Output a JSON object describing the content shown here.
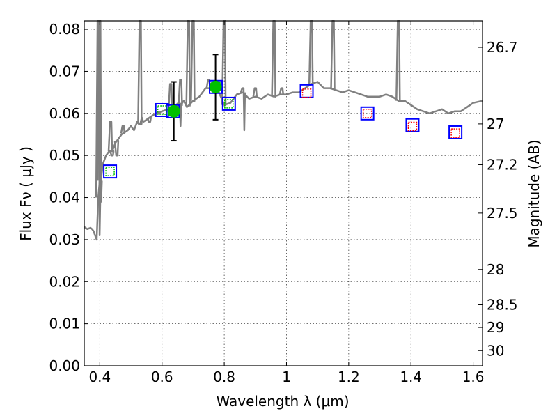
{
  "chart_data": {
    "type": "scatter",
    "xlabel": "Wavelength  λ (μm)",
    "ylabel": "Flux  Fν  ( μJy )",
    "ylabel2": "Magnitude (AB)",
    "xlim": [
      0.35,
      1.63
    ],
    "ylim": [
      0.0,
      0.082
    ],
    "grid": true,
    "x_ticks": [
      0.4,
      0.6,
      0.8,
      1.0,
      1.2,
      1.4,
      1.6
    ],
    "x_tick_labels": [
      "0.4",
      "0.6",
      "0.8",
      "1",
      "1.2",
      "1.4",
      "1.6"
    ],
    "y_ticks": [
      0.0,
      0.01,
      0.02,
      0.03,
      0.04,
      0.05,
      0.06,
      0.07,
      0.08
    ],
    "y_tick_labels": [
      "0.00",
      "0.01",
      "0.02",
      "0.03",
      "0.04",
      "0.05",
      "0.06",
      "0.07",
      "0.08"
    ],
    "right_axis_ticks": [
      {
        "label": "26.7",
        "flux": 0.0757
      },
      {
        "label": "27",
        "flux": 0.0575
      },
      {
        "label": "27.2",
        "flux": 0.0478
      },
      {
        "label": "27.5",
        "flux": 0.0363
      },
      {
        "label": "28",
        "flux": 0.0229
      },
      {
        "label": "28.5",
        "flux": 0.0145
      },
      {
        "label": "29",
        "flux": 0.0091
      },
      {
        "label": "30",
        "flux": 0.0036
      }
    ],
    "series": [
      {
        "style": "line",
        "color": "#808080",
        "x": [
          0.35,
          0.36,
          0.37,
          0.375,
          0.38,
          0.385,
          0.39,
          0.395,
          0.4,
          0.405,
          0.41,
          0.42,
          0.43,
          0.44,
          0.45,
          0.46,
          0.47,
          0.48,
          0.49,
          0.5,
          0.51,
          0.515,
          0.52,
          0.525,
          0.53,
          0.535,
          0.54,
          0.55,
          0.56,
          0.58,
          0.6,
          0.62,
          0.64,
          0.65,
          0.655,
          0.66,
          0.67,
          0.68,
          0.7,
          0.72,
          0.74,
          0.76,
          0.78,
          0.8,
          0.82,
          0.84,
          0.86,
          0.88,
          0.9,
          0.92,
          0.94,
          0.96,
          0.98,
          1.0,
          1.02,
          1.04,
          1.06,
          1.08,
          1.1,
          1.12,
          1.14,
          1.16,
          1.18,
          1.2,
          1.22,
          1.24,
          1.26,
          1.28,
          1.3,
          1.32,
          1.34,
          1.36,
          1.38,
          1.4,
          1.42,
          1.44,
          1.46,
          1.48,
          1.5,
          1.52,
          1.54,
          1.56,
          1.58,
          1.6,
          1.63
        ],
        "y": [
          0.033,
          0.0325,
          0.0328,
          0.0325,
          0.032,
          0.031,
          0.03,
          0.04,
          0.044,
          0.045,
          0.048,
          0.05,
          0.051,
          0.051,
          0.053,
          0.054,
          0.055,
          0.0555,
          0.056,
          0.057,
          0.056,
          0.057,
          0.058,
          0.0575,
          0.0575,
          0.059,
          0.058,
          0.0585,
          0.059,
          0.06,
          0.0605,
          0.061,
          0.061,
          0.0615,
          0.0625,
          0.062,
          0.063,
          0.0615,
          0.063,
          0.064,
          0.066,
          0.066,
          0.0655,
          0.062,
          0.0625,
          0.0645,
          0.065,
          0.0635,
          0.064,
          0.0635,
          0.0645,
          0.064,
          0.0645,
          0.0645,
          0.065,
          0.065,
          0.066,
          0.067,
          0.0675,
          0.066,
          0.066,
          0.0655,
          0.065,
          0.0655,
          0.065,
          0.0645,
          0.064,
          0.064,
          0.064,
          0.0645,
          0.064,
          0.063,
          0.063,
          0.062,
          0.061,
          0.0605,
          0.06,
          0.0605,
          0.061,
          0.06,
          0.0605,
          0.0605,
          0.0615,
          0.0625,
          0.063
        ]
      },
      {
        "style": "line-spikes",
        "color": "#808080",
        "x": [
          0.395,
          0.4,
          0.435,
          0.44,
          0.455,
          0.475,
          0.53,
          0.56,
          0.59,
          0.628,
          0.655,
          0.66,
          0.685,
          0.7,
          0.75,
          0.762,
          0.8,
          0.86,
          0.9,
          0.96,
          0.985,
          1.08,
          1.15,
          1.36
        ],
        "y_peak": [
          0.082,
          0.082,
          0.058,
          0.05,
          0.05,
          0.057,
          0.082,
          0.058,
          0.06,
          0.067,
          0.062,
          0.068,
          0.082,
          0.082,
          0.068,
          0.066,
          0.082,
          0.066,
          0.066,
          0.082,
          0.066,
          0.082,
          0.082,
          0.082
        ],
        "y_dip": [
          0.031,
          0.039,
          null,
          null,
          null,
          null,
          null,
          null,
          null,
          null,
          0.057,
          null,
          null,
          null,
          null,
          null,
          null,
          0.056,
          null,
          null,
          null,
          null,
          null,
          null
        ]
      },
      {
        "style": "open-square",
        "color": "#0000ff",
        "x": [
          0.433,
          0.6,
          0.635,
          0.773,
          0.815,
          1.065,
          1.26,
          1.405,
          1.543
        ],
        "y": [
          0.0462,
          0.0608,
          0.0605,
          0.0663,
          0.0623,
          0.0653,
          0.06,
          0.0572,
          0.0555
        ]
      },
      {
        "style": "inner-square",
        "color": "#00c000",
        "x": [
          0.433,
          0.6,
          0.635,
          0.773,
          0.815
        ],
        "y": [
          0.0462,
          0.0608,
          0.0605,
          0.0663,
          0.0623
        ]
      },
      {
        "style": "inner-square",
        "color": "#ff0000",
        "x": [
          1.065,
          1.26,
          1.405,
          1.543
        ],
        "y": [
          0.0648,
          0.06,
          0.0569,
          0.0553
        ]
      },
      {
        "style": "filled-circle-errorbar",
        "color": "#00c000",
        "x": [
          0.638,
          0.772
        ],
        "y": [
          0.0605,
          0.0663
        ],
        "yerr_low": [
          0.0535,
          0.0585
        ],
        "yerr_high": [
          0.0675,
          0.074
        ]
      }
    ]
  }
}
